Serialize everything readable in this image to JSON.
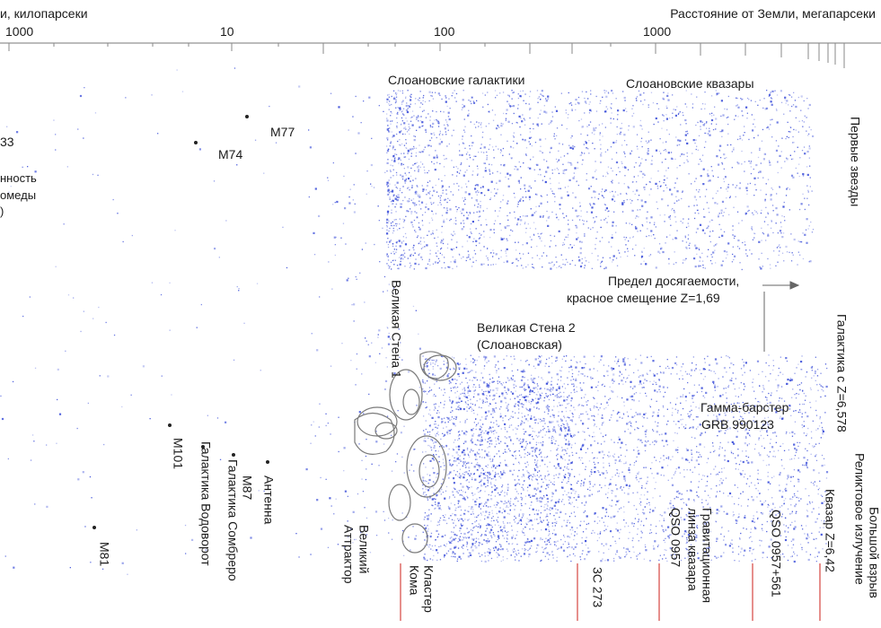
{
  "axis": {
    "left_title": "и, килопарсеки",
    "right_title": "Расстояние от Земли, мегапарсеки",
    "ticks": [
      "1000",
      "10",
      "100",
      "1000"
    ]
  },
  "regions": {
    "sloan_galaxies": "Слоановские галактики",
    "sloan_quasars": "Слоановские квазары",
    "first_stars": "Первые звезды"
  },
  "labels": {
    "m33": "33",
    "andromeda_1": "нность",
    "andromeda_2": "омеды",
    "andromeda_3": ")",
    "m77": "M77",
    "m74": "M74",
    "limit_1": "Предел досягаемости,",
    "limit_2": "красное смещение Z=1,69",
    "great_wall_2_1": "Великая Стена 2",
    "great_wall_2_2": "(Слоановская)",
    "grb_1": "Гамма-барстер",
    "grb_2": "GRB 990123"
  },
  "vertical_labels": {
    "great_wall_1": "Великая Стена 1",
    "galaxy_z": "Галактика с Z=6,578",
    "relic_1": "Реликтовое излучение",
    "relic_2": "Большой взрыв",
    "m101": "M101",
    "whirlpool": "Галактика Водоворот",
    "m87": "M87",
    "sombrero": "Галактика Сомбреро",
    "antennae": "Антенна",
    "m81": "M81",
    "attractor_1": "Великий",
    "attractor_2": "Аттрактор",
    "coma_1": "Кластер",
    "coma_2": "Кома",
    "3c273": "3C 273",
    "lens_1": "Гравитационная",
    "lens_2": "линза квазара",
    "lens_3": "QSO 0957",
    "qso": "QSO 0957+561",
    "quasar_z": "Квазар Z=6,42"
  },
  "colors": {
    "galaxy_dots": "#2a3fd6",
    "contour": "#7a7a7a",
    "pointer": "#d9534f"
  }
}
